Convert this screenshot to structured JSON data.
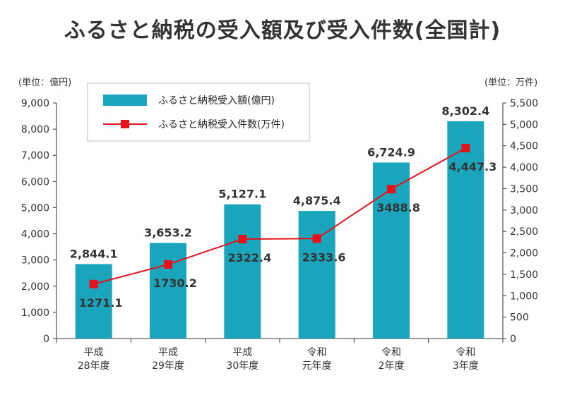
{
  "title": "ふるさと納税の受入額及び受入件数(全国計)",
  "units": {
    "left": "(単位：億円)",
    "right": "(単位：万件)"
  },
  "colors": {
    "bar": "#1ba5bc",
    "line": "#e5121c",
    "axis": "#333333"
  },
  "chart_data": {
    "type": "bar",
    "categories": [
      [
        "平成",
        "28年度"
      ],
      [
        "平成",
        "29年度"
      ],
      [
        "平成",
        "30年度"
      ],
      [
        "令和",
        "元年度"
      ],
      [
        "令和",
        "2年度"
      ],
      [
        "令和",
        "3年度"
      ]
    ],
    "series": [
      {
        "name": "ふるさと納税受入額(億円)",
        "type": "bar",
        "axis": "left",
        "values": [
          2844.1,
          3653.2,
          5127.1,
          4875.4,
          6724.9,
          8302.4
        ],
        "labels": [
          "2,844.1",
          "3,653.2",
          "5,127.1",
          "4,875.4",
          "6,724.9",
          "8,302.4"
        ]
      },
      {
        "name": "ふるさと納税受入件数(万件)",
        "type": "line",
        "axis": "right",
        "values": [
          1271.1,
          1730.2,
          2322.4,
          2333.6,
          3488.8,
          4447.3
        ],
        "labels": [
          "1271.1",
          "1730.2",
          "2322.4",
          "2333.6",
          "3488.8",
          "4,447.3"
        ]
      }
    ],
    "left_axis": {
      "ylim": [
        0,
        9000
      ],
      "ticks": [
        "0",
        "1,000",
        "2,000",
        "3,000",
        "4,000",
        "5,000",
        "6,000",
        "7,000",
        "8,000",
        "9,000"
      ]
    },
    "right_axis": {
      "ylim": [
        0,
        5500
      ],
      "ticks": [
        "0",
        "500",
        "1,000",
        "1,500",
        "2,000",
        "2,500",
        "3,000",
        "3,500",
        "4,000",
        "4,500",
        "5,000",
        "5,500"
      ]
    },
    "legend": "top-left",
    "grid": false
  }
}
